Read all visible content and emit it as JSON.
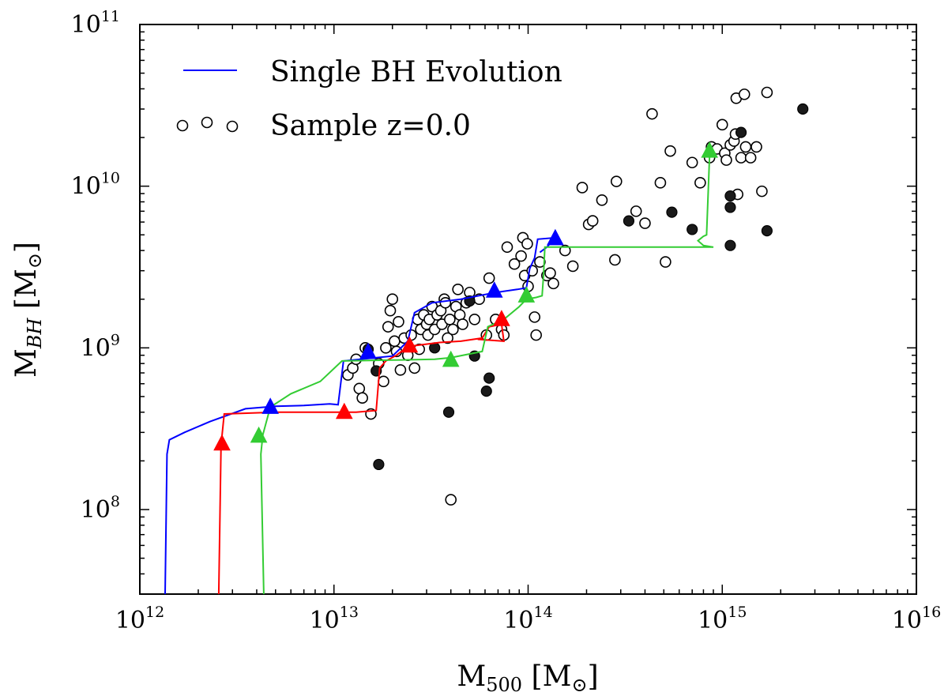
{
  "chart_data": {
    "type": "scatter",
    "xscale": "log",
    "yscale": "log",
    "xlim": [
      1000000000000.0,
      1e+16
    ],
    "ylim": [
      30000000.0,
      100000000000.0
    ],
    "xlabel": {
      "base": "M",
      "sub": "500",
      "unit": "M",
      "unit_sub": "⊙"
    },
    "ylabel": {
      "base": "M",
      "sub": "BH",
      "unit": "M",
      "unit_sub": "⊙"
    },
    "x_ticks": [
      {
        "base": "10",
        "exp": "12",
        "value": 1000000000000.0
      },
      {
        "base": "10",
        "exp": "13",
        "value": 10000000000000.0
      },
      {
        "base": "10",
        "exp": "14",
        "value": 100000000000000.0
      },
      {
        "base": "10",
        "exp": "15",
        "value": 1000000000000000.0
      },
      {
        "base": "10",
        "exp": "16",
        "value": 1e+16
      }
    ],
    "y_ticks": [
      {
        "base": "10",
        "exp": "8",
        "value": 100000000.0
      },
      {
        "base": "10",
        "exp": "9",
        "value": 1000000000.0
      },
      {
        "base": "10",
        "exp": "10",
        "value": 10000000000.0
      },
      {
        "base": "10",
        "exp": "11",
        "value": 100000000000.0
      }
    ],
    "legend": {
      "position": "top-left",
      "entries": [
        {
          "label": "Single BH Evolution",
          "kind": "line",
          "color": "#0000ff"
        },
        {
          "label": "Sample z=0.0",
          "kind": "open-circle",
          "color": "#000000"
        }
      ]
    },
    "series": [
      {
        "name": "sample_open",
        "kind": "open-circle",
        "points": [
          [
            11800000000000.0,
            680000000.0
          ],
          [
            12500000000000.0,
            750000000.0
          ],
          [
            13000000000000.0,
            850000000.0
          ],
          [
            13500000000000.0,
            560000000.0
          ],
          [
            14000000000000.0,
            490000000.0
          ],
          [
            14500000000000.0,
            1000000000.0
          ],
          [
            15500000000000.0,
            390000000.0
          ],
          [
            17000000000000.0,
            800000000.0
          ],
          [
            18000000000000.0,
            620000000.0
          ],
          [
            18500000000000.0,
            1000000000.0
          ],
          [
            19000000000000.0,
            1350000000.0
          ],
          [
            19500000000000.0,
            1700000000.0
          ],
          [
            20000000000000.0,
            2000000000.0
          ],
          [
            20500000000000.0,
            1100000000.0
          ],
          [
            21000000000000.0,
            950000000.0
          ],
          [
            21500000000000.0,
            1450000000.0
          ],
          [
            22000000000000.0,
            730000000.0
          ],
          [
            23000000000000.0,
            1150000000.0
          ],
          [
            24000000000000.0,
            900000000.0
          ],
          [
            25000000000000.0,
            1200000000.0
          ],
          [
            26000000000000.0,
            750000000.0
          ],
          [
            27000000000000.0,
            1500000000.0
          ],
          [
            27500000000000.0,
            980000000.0
          ],
          [
            28000000000000.0,
            1300000000.0
          ],
          [
            29000000000000.0,
            1600000000.0
          ],
          [
            30000000000000.0,
            1400000000.0
          ],
          [
            30500000000000.0,
            1200000000.0
          ],
          [
            31000000000000.0,
            1500000000.0
          ],
          [
            32000000000000.0,
            1800000000.0
          ],
          [
            33000000000000.0,
            1300000000.0
          ],
          [
            34000000000000.0,
            1600000000.0
          ],
          [
            35500000000000.0,
            1700000000.0
          ],
          [
            36000000000000.0,
            1400000000.0
          ],
          [
            37000000000000.0,
            2000000000.0
          ],
          [
            37500000000000.0,
            1900000000.0
          ],
          [
            38500000000000.0,
            1150000000.0
          ],
          [
            39500000000000.0,
            1500000000.0
          ],
          [
            41000000000000.0,
            1300000000.0
          ],
          [
            42500000000000.0,
            1800000000.0
          ],
          [
            43500000000000.0,
            2300000000.0
          ],
          [
            44500000000000.0,
            1600000000.0
          ],
          [
            46000000000000.0,
            1400000000.0
          ],
          [
            48000000000000.0,
            1900000000.0
          ],
          [
            50000000000000.0,
            2200000000.0
          ],
          [
            53000000000000.0,
            1500000000.0
          ],
          [
            56000000000000.0,
            2000000000.0
          ],
          [
            61000000000000.0,
            1200000000.0
          ],
          [
            63000000000000.0,
            2700000000.0
          ],
          [
            68000000000000.0,
            1500000000.0
          ],
          [
            73000000000000.0,
            1300000000.0
          ],
          [
            75000000000000.0,
            1200000000.0
          ],
          [
            78000000000000.0,
            4200000000.0
          ],
          [
            85000000000000.0,
            3300000000.0
          ],
          [
            92000000000000.0,
            3700000000.0
          ],
          [
            94000000000000.0,
            4800000000.0
          ],
          [
            96000000000000.0,
            2800000000.0
          ],
          [
            99000000000000.0,
            4400000000.0
          ],
          [
            100000000000000.0,
            2400000000.0
          ],
          [
            105000000000000.0,
            3000000000.0
          ],
          [
            108000000000000.0,
            1550000000.0
          ],
          [
            110000000000000.0,
            1200000000.0
          ],
          [
            115000000000000.0,
            3400000000.0
          ],
          [
            125000000000000.0,
            2800000000.0
          ],
          [
            130000000000000.0,
            2900000000.0
          ],
          [
            135000000000000.0,
            2500000000.0
          ],
          [
            155000000000000.0,
            4000000000.0
          ],
          [
            170000000000000.0,
            3200000000.0
          ],
          [
            190000000000000.0,
            9800000000.0
          ],
          [
            205000000000000.0,
            5800000000.0
          ],
          [
            215000000000000.0,
            6100000000.0
          ],
          [
            240000000000000.0,
            8200000000.0
          ],
          [
            280000000000000.0,
            3500000000.0
          ],
          [
            285000000000000.0,
            10700000000.0
          ],
          [
            360000000000000.0,
            7000000000.0
          ],
          [
            400000000000000.0,
            5900000000.0
          ],
          [
            435000000000000.0,
            28000000000.0
          ],
          [
            480000000000000.0,
            10500000000.0
          ],
          [
            510000000000000.0,
            3400000000.0
          ],
          [
            540000000000000.0,
            16500000000.0
          ],
          [
            700000000000000.0,
            14000000000.0
          ],
          [
            770000000000000.0,
            10500000000.0
          ],
          [
            860000000000000.0,
            15000000000.0
          ],
          [
            880000000000000.0,
            17500000000.0
          ],
          [
            940000000000000.0,
            17000000000.0
          ],
          [
            1000000000000000.0,
            24000000000.0
          ],
          [
            1030000000000000.0,
            16000000000.0
          ],
          [
            1050000000000000.0,
            14500000000.0
          ],
          [
            1100000000000000.0,
            18000000000.0
          ],
          [
            1150000000000000.0,
            19000000000.0
          ],
          [
            1170000000000000.0,
            21000000000.0
          ],
          [
            1180000000000000.0,
            35000000000.0
          ],
          [
            1200000000000000.0,
            8900000000.0
          ],
          [
            1250000000000000.0,
            15000000000.0
          ],
          [
            1300000000000000.0,
            37000000000.0
          ],
          [
            1320000000000000.0,
            17500000000.0
          ],
          [
            1400000000000000.0,
            15000000000.0
          ],
          [
            1500000000000000.0,
            17500000000.0
          ],
          [
            1600000000000000.0,
            9300000000.0
          ],
          [
            1700000000000000.0,
            38000000000.0
          ],
          [
            40000000000000.0,
            115000000.0
          ]
        ]
      },
      {
        "name": "sample_filled",
        "kind": "filled-circle",
        "points": [
          [
            17000000000000.0,
            190000000.0
          ],
          [
            16500000000000.0,
            720000000.0
          ],
          [
            15000000000000.0,
            980000000.0
          ],
          [
            33000000000000.0,
            1000000000.0
          ],
          [
            39000000000000.0,
            400000000.0
          ],
          [
            50000000000000.0,
            1950000000.0
          ],
          [
            53000000000000.0,
            890000000.0
          ],
          [
            61000000000000.0,
            540000000.0
          ],
          [
            63000000000000.0,
            650000000.0
          ],
          [
            330000000000000.0,
            6100000000.0
          ],
          [
            550000000000000.0,
            6900000000.0
          ],
          [
            700000000000000.0,
            5400000000.0
          ],
          [
            1100000000000000.0,
            8700000000.0
          ],
          [
            1100000000000000.0,
            7400000000.0
          ],
          [
            1100000000000000.0,
            4300000000.0
          ],
          [
            1250000000000000.0,
            21500000000.0
          ],
          [
            1700000000000000.0,
            5300000000.0
          ],
          [
            2600000000000000.0,
            30000000000.0
          ]
        ]
      },
      {
        "name": "evolution_blue",
        "kind": "line",
        "color": "#0000ff",
        "points": [
          [
            1350000000000.0,
            30000000.0
          ],
          [
            1380000000000.0,
            220000000.0
          ],
          [
            1420000000000.0,
            270000000.0
          ],
          [
            1700000000000.0,
            300000000.0
          ],
          [
            2300000000000.0,
            350000000.0
          ],
          [
            3500000000000.0,
            420000000.0
          ],
          [
            5000000000000.0,
            435000000.0
          ],
          [
            7000000000000.0,
            440000000.0
          ],
          [
            9500000000000.0,
            450000000.0
          ],
          [
            10500000000000.0,
            445000000.0
          ],
          [
            11200000000000.0,
            830000000.0
          ],
          [
            15000000000000.0,
            860000000.0
          ],
          [
            20000000000000.0,
            890000000.0
          ],
          [
            24000000000000.0,
            1100000000.0
          ],
          [
            26000000000000.0,
            1650000000.0
          ],
          [
            32000000000000.0,
            1900000000.0
          ],
          [
            45000000000000.0,
            2000000000.0
          ],
          [
            68000000000000.0,
            2200000000.0
          ],
          [
            88000000000000.0,
            2300000000.0
          ],
          [
            98000000000000.0,
            2350000000.0
          ],
          [
            102000000000000.0,
            3100000000.0
          ],
          [
            108000000000000.0,
            3600000000.0
          ],
          [
            112000000000000.0,
            4700000000.0
          ],
          [
            138000000000000.0,
            4800000000.0
          ],
          [
            125000000000000.0,
            4200000000.0
          ],
          [
            115000000000000.0,
            3900000000.0
          ]
        ]
      },
      {
        "name": "evolution_red",
        "kind": "line",
        "color": "#ff0000",
        "points": [
          [
            2550000000000.0,
            30000000.0
          ],
          [
            2620000000000.0,
            250000000.0
          ],
          [
            2720000000000.0,
            390000000.0
          ],
          [
            5000000000000.0,
            400000000.0
          ],
          [
            9000000000000.0,
            400000000.0
          ],
          [
            13000000000000.0,
            400000000.0
          ],
          [
            16500000000000.0,
            410000000.0
          ],
          [
            17200000000000.0,
            750000000.0
          ],
          [
            18500000000000.0,
            830000000.0
          ],
          [
            21000000000000.0,
            900000000.0
          ],
          [
            24000000000000.0,
            1020000000.0
          ],
          [
            35000000000000.0,
            1080000000.0
          ],
          [
            45000000000000.0,
            1100000000.0
          ],
          [
            58000000000000.0,
            1150000000.0
          ],
          [
            63000000000000.0,
            1350000000.0
          ],
          [
            73000000000000.0,
            1400000000.0
          ],
          [
            75000000000000.0,
            1100000000.0
          ],
          [
            55000000000000.0,
            1130000000.0
          ]
        ]
      },
      {
        "name": "evolution_green",
        "kind": "line",
        "color": "#33cc33",
        "points": [
          [
            4350000000000.0,
            30000000.0
          ],
          [
            4200000000000.0,
            220000000.0
          ],
          [
            4300000000000.0,
            290000000.0
          ],
          [
            4700000000000.0,
            430000000.0
          ],
          [
            6000000000000.0,
            520000000.0
          ],
          [
            8500000000000.0,
            620000000.0
          ],
          [
            11000000000000.0,
            830000000.0
          ],
          [
            20000000000000.0,
            840000000.0
          ],
          [
            33000000000000.0,
            850000000.0
          ],
          [
            40000000000000.0,
            870000000.0
          ],
          [
            58000000000000.0,
            950000000.0
          ],
          [
            62000000000000.0,
            1350000000.0
          ],
          [
            75000000000000.0,
            1500000000.0
          ],
          [
            90000000000000.0,
            1800000000.0
          ],
          [
            98000000000000.0,
            2000000000.0
          ],
          [
            110000000000000.0,
            2050000000.0
          ],
          [
            118000000000000.0,
            2100000000.0
          ],
          [
            120000000000000.0,
            2800000000.0
          ],
          [
            122000000000000.0,
            4200000000.0
          ],
          [
            200000000000000.0,
            4200000000.0
          ],
          [
            500000000000000.0,
            4200000000.0
          ],
          [
            700000000000000.0,
            4200000000.0
          ],
          [
            900000000000000.0,
            4200000000.0
          ],
          [
            800000000000000.0,
            4300000000.0
          ],
          [
            750000000000000.0,
            4600000000.0
          ],
          [
            800000000000000.0,
            4900000000.0
          ],
          [
            830000000000000.0,
            5000000000.0
          ],
          [
            850000000000000.0,
            10500000000.0
          ],
          [
            860000000000000.0,
            15500000000.0
          ]
        ]
      }
    ],
    "markers": [
      {
        "color": "#0000ff",
        "points": [
          [
            4700000000000.0,
            430000000.0
          ],
          [
            15000000000000.0,
            940000000.0
          ],
          [
            67000000000000.0,
            2250000000.0
          ],
          [
            138000000000000.0,
            4750000000.0
          ]
        ]
      },
      {
        "color": "#ff0000",
        "points": [
          [
            2650000000000.0,
            255000000.0
          ],
          [
            11300000000000.0,
            400000000.0
          ],
          [
            24500000000000.0,
            1030000000.0
          ],
          [
            73000000000000.0,
            1500000000.0
          ]
        ]
      },
      {
        "color": "#33cc33",
        "points": [
          [
            4100000000000.0,
            285000000.0
          ],
          [
            40000000000000.0,
            840000000.0
          ],
          [
            98000000000000.0,
            2100000000.0
          ],
          [
            860000000000000.0,
            16500000000.0
          ]
        ]
      }
    ]
  }
}
